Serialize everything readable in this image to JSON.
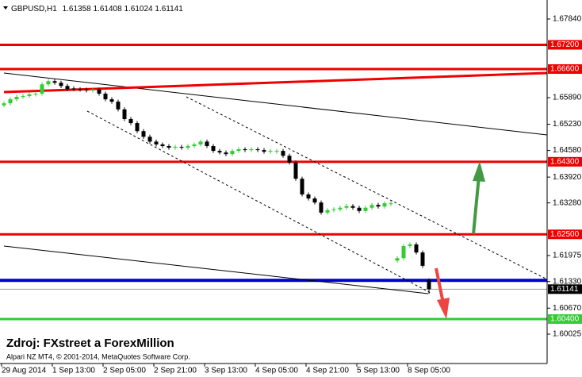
{
  "chart_data": {
    "type": "candlestick",
    "symbol": "GBPUSD,H1",
    "source": "Zdroj: FXstreet a ForexMillion",
    "copyright": "Alpari NZ MT4, © 2001-2014, MetaQuotes Software Corp.",
    "up_color": "#33cc33",
    "down_color": "#000000",
    "categories": [
      "29 Aug 2014",
      null,
      null,
      null,
      null,
      null,
      null,
      null,
      "1 Sep 13:00",
      null,
      null,
      null,
      null,
      null,
      null,
      null,
      "2 Sep 05:00",
      null,
      null,
      null,
      null,
      null,
      null,
      null,
      "2 Sep 21:00",
      null,
      null,
      null,
      null,
      null,
      null,
      null,
      "3 Sep 13:00",
      null,
      null,
      null,
      null,
      null,
      null,
      null,
      "4 Sep 05:00",
      null,
      null,
      null,
      null,
      null,
      null,
      null,
      "4 Sep 21:00",
      null,
      null,
      null,
      null,
      null,
      null,
      null,
      "5 Sep 13:00",
      null,
      null,
      null,
      null,
      null,
      null,
      null,
      "8 Sep 05:00",
      null,
      null,
      null
    ],
    "open": [
      1.657,
      1.6575,
      1.6585,
      1.6591,
      1.6593,
      1.6597,
      1.6599,
      1.6622,
      1.663,
      1.6626,
      1.6618,
      1.6612,
      1.661,
      1.6609,
      1.6607,
      1.6609,
      1.6599,
      1.6585,
      1.6579,
      1.656,
      1.6536,
      1.6526,
      1.6506,
      1.6492,
      1.648,
      1.6473,
      1.6469,
      1.6465,
      1.6467,
      1.6465,
      1.6469,
      1.6473,
      1.648,
      1.6469,
      1.6457,
      1.6453,
      1.6449,
      1.6457,
      1.6461,
      1.6459,
      1.6461,
      1.6459,
      1.6455,
      1.6455,
      1.6457,
      1.6445,
      1.6428,
      1.6388,
      1.6349,
      1.6339,
      1.6329,
      1.6304,
      1.631,
      1.6312,
      1.6316,
      1.632,
      1.6316,
      1.6308,
      1.6316,
      1.6323,
      1.6319,
      1.6325,
      1.6185,
      1.6191,
      1.6221,
      1.6225,
      1.6205,
      1.61358
    ],
    "high": [
      1.658,
      1.659,
      1.6596,
      1.6598,
      1.6602,
      1.6604,
      1.6627,
      1.6635,
      1.6635,
      1.6631,
      1.6623,
      1.6617,
      1.6615,
      1.6614,
      1.6614,
      1.6614,
      1.6604,
      1.659,
      1.6584,
      1.6565,
      1.6541,
      1.6531,
      1.6511,
      1.6497,
      1.6485,
      1.6478,
      1.6474,
      1.6472,
      1.6472,
      1.6474,
      1.6478,
      1.6485,
      1.6485,
      1.6474,
      1.6462,
      1.6458,
      1.6462,
      1.6466,
      1.6466,
      1.6466,
      1.6466,
      1.6464,
      1.6462,
      1.6462,
      1.6462,
      1.645,
      1.6433,
      1.6393,
      1.6354,
      1.6344,
      1.6334,
      1.6315,
      1.6317,
      1.6321,
      1.6325,
      1.6325,
      1.6321,
      1.6321,
      1.6328,
      1.6328,
      1.6332,
      1.6332,
      1.6196,
      1.6226,
      1.623,
      1.623,
      1.621,
      1.61408
    ],
    "low": [
      1.6565,
      1.657,
      1.658,
      1.6586,
      1.6588,
      1.6592,
      1.6594,
      1.6617,
      1.6621,
      1.6613,
      1.6605,
      1.6605,
      1.6604,
      1.6602,
      1.6602,
      1.6594,
      1.658,
      1.6574,
      1.6555,
      1.6531,
      1.6521,
      1.6501,
      1.6487,
      1.6475,
      1.6468,
      1.6464,
      1.646,
      1.646,
      1.646,
      1.646,
      1.6464,
      1.6468,
      1.6464,
      1.6452,
      1.6448,
      1.6444,
      1.6444,
      1.6452,
      1.6454,
      1.6454,
      1.6454,
      1.645,
      1.645,
      1.645,
      1.644,
      1.6423,
      1.6383,
      1.6344,
      1.6334,
      1.6324,
      1.6299,
      1.6299,
      1.6305,
      1.6307,
      1.6311,
      1.6311,
      1.6303,
      1.6303,
      1.6311,
      1.6314,
      1.6314,
      1.632,
      1.618,
      1.6186,
      1.6216,
      1.62,
      1.6167,
      1.61024
    ],
    "close": [
      1.6575,
      1.6585,
      1.6591,
      1.6593,
      1.6597,
      1.6599,
      1.6622,
      1.663,
      1.6626,
      1.6618,
      1.661,
      1.661,
      1.6609,
      1.6607,
      1.6609,
      1.6599,
      1.6585,
      1.6579,
      1.656,
      1.6536,
      1.6526,
      1.6506,
      1.6492,
      1.648,
      1.6473,
      1.6469,
      1.6465,
      1.6467,
      1.6465,
      1.6469,
      1.6473,
      1.648,
      1.6469,
      1.6457,
      1.6453,
      1.6449,
      1.6457,
      1.6461,
      1.6459,
      1.6461,
      1.6459,
      1.6455,
      1.6457,
      1.6457,
      1.6445,
      1.6428,
      1.6388,
      1.6349,
      1.6339,
      1.6329,
      1.6304,
      1.631,
      1.6312,
      1.6316,
      1.632,
      1.6316,
      1.6308,
      1.6316,
      1.6323,
      1.6319,
      1.6327,
      1.6327,
      1.6191,
      1.6221,
      1.6225,
      1.6205,
      1.6172,
      1.61141
    ],
    "ylim": [
      1.59297,
      1.68312
    ],
    "yticks": [
      {
        "value": 1.6784,
        "label": "1.67840"
      },
      {
        "value": 1.6589,
        "label": "1.65890"
      },
      {
        "value": 1.6523,
        "label": "1.65230"
      },
      {
        "value": 1.6458,
        "label": "1.64580"
      },
      {
        "value": 1.6392,
        "label": "1.63920"
      },
      {
        "value": 1.6328,
        "label": "1.63280"
      },
      1.61975,
      {
        "value": 1.6133,
        "label": "1.61330"
      },
      {
        "value": 1.6067,
        "label": "1.60670"
      },
      1.60025
    ],
    "levels": [
      {
        "value": 1.672,
        "label": "1.67200",
        "color": "#ee0000"
      },
      {
        "value": 1.666,
        "label": "1.66600",
        "color": "#ee0000"
      },
      {
        "value": 1.643,
        "label": "1.64300",
        "color": "#ee0000"
      },
      {
        "value": 1.625,
        "label": "1.62500",
        "color": "#ee0000"
      },
      {
        "value": 1.6136,
        "color": "#0000cc"
      },
      {
        "value": 1.604,
        "label": "1.60400",
        "color": "#33cc33"
      }
    ]
  }
}
